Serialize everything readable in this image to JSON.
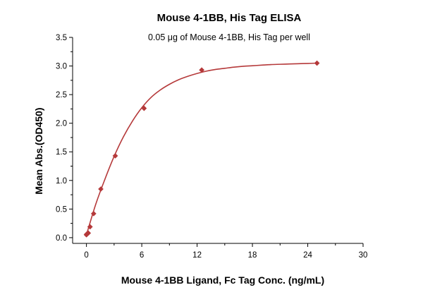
{
  "chart_data": {
    "type": "scatter",
    "title": "Mouse 4-1BB, His Tag ELISA",
    "subtitle": "0.05 μg of Mouse 4-1BB, His Tag per well",
    "xlabel": "Mouse 4-1BB Ligand, Fc Tag Conc. (ng/mL)",
    "ylabel": "Mean Abs.(OD450)",
    "xlim": [
      -1.5,
      30
    ],
    "ylim": [
      -0.1,
      3.5
    ],
    "x_ticks": [
      0,
      6,
      12,
      18,
      24,
      30
    ],
    "y_ticks": [
      0.0,
      0.5,
      1.0,
      1.5,
      2.0,
      2.5,
      3.0,
      3.5
    ],
    "grid": false,
    "legend": "none",
    "color": "#b5393a",
    "series": [
      {
        "x": [
          0.0,
          0.02,
          0.05,
          0.1,
          0.2,
          0.39,
          0.78,
          1.56,
          3.125,
          6.25,
          12.5,
          25
        ],
        "y": [
          0.05,
          0.06,
          0.06,
          0.07,
          0.08,
          0.19,
          0.42,
          0.85,
          1.43,
          2.26,
          2.93,
          3.05
        ]
      }
    ],
    "fit_curve": {
      "x": [
        0,
        1,
        2,
        3,
        4,
        5,
        6,
        7,
        8,
        9,
        10,
        11,
        12,
        13,
        14,
        15,
        16,
        17,
        18,
        19,
        20,
        21,
        22,
        23,
        24,
        25
      ],
      "y": [
        0.05,
        0.58,
        1.02,
        1.42,
        1.76,
        2.04,
        2.27,
        2.45,
        2.58,
        2.68,
        2.76,
        2.82,
        2.87,
        2.91,
        2.94,
        2.96,
        2.98,
        2.995,
        3.005,
        3.015,
        3.025,
        3.03,
        3.035,
        3.04,
        3.045,
        3.05
      ]
    }
  }
}
